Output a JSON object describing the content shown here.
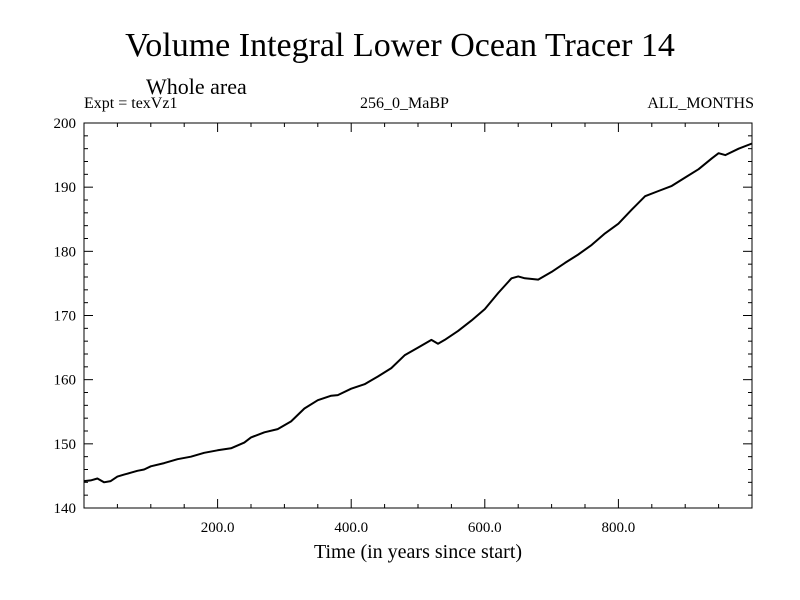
{
  "chart_data": {
    "type": "line",
    "title": "Volume Integral Lower Ocean Tracer 14",
    "subtitle": "Whole area",
    "labels": {
      "left": "Expt = texVz1",
      "center": "256_0_MaBP",
      "right": "ALL_MONTHS"
    },
    "xlabel": "Time (in years since start)",
    "ylabel": "",
    "xlim": [
      0,
      1000
    ],
    "ylim": [
      140,
      200
    ],
    "x_ticks": [
      200,
      400,
      600,
      800
    ],
    "x_tick_labels": [
      "200.0",
      "400.0",
      "600.0",
      "800.0"
    ],
    "y_ticks": [
      140,
      150,
      160,
      170,
      180,
      190,
      200
    ],
    "y_tick_labels": [
      "140",
      "150",
      "160",
      "170",
      "180",
      "190",
      "200"
    ],
    "series": [
      {
        "name": "Tracer 14",
        "x": [
          0,
          10,
          20,
          30,
          40,
          50,
          60,
          70,
          80,
          90,
          100,
          120,
          140,
          160,
          180,
          200,
          220,
          240,
          250,
          270,
          290,
          310,
          330,
          350,
          370,
          380,
          400,
          420,
          440,
          460,
          480,
          500,
          520,
          530,
          540,
          560,
          580,
          600,
          620,
          640,
          650,
          660,
          680,
          700,
          720,
          740,
          760,
          780,
          800,
          820,
          840,
          860,
          880,
          900,
          920,
          940,
          950,
          960,
          980,
          1000
        ],
        "y": [
          144.2,
          144.3,
          144.6,
          144.0,
          144.2,
          144.9,
          145.2,
          145.5,
          145.8,
          146.0,
          146.5,
          147.0,
          147.6,
          148.0,
          148.6,
          149.0,
          149.3,
          150.2,
          151.0,
          151.8,
          152.3,
          153.5,
          155.5,
          156.8,
          157.5,
          157.6,
          158.6,
          159.3,
          160.5,
          161.8,
          163.8,
          165.0,
          166.2,
          165.6,
          166.2,
          167.6,
          169.2,
          171.0,
          173.5,
          175.8,
          176.1,
          175.8,
          175.6,
          176.8,
          178.2,
          179.5,
          181.0,
          182.8,
          184.3,
          186.5,
          188.6,
          189.4,
          190.2,
          191.5,
          192.8,
          194.5,
          195.3,
          195.0,
          196.0,
          196.8
        ]
      }
    ]
  }
}
